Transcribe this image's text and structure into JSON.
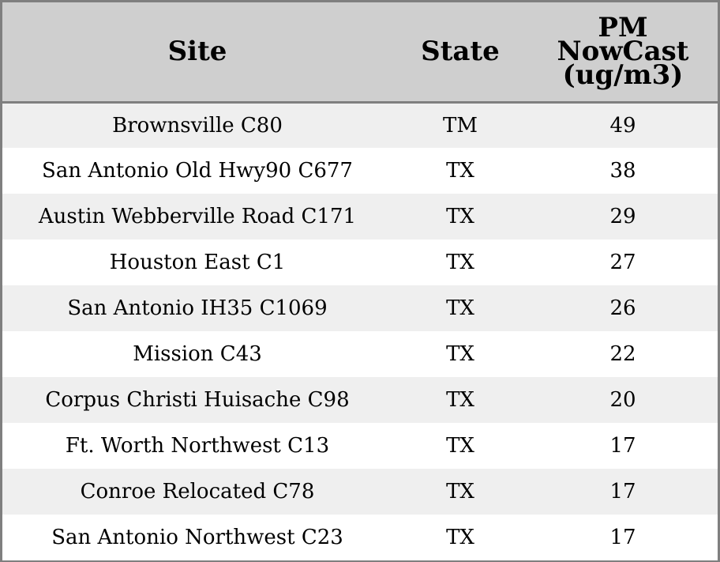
{
  "table": {
    "headers": {
      "site": "Site",
      "state": "State",
      "pm": [
        "PM",
        "NowCast",
        "(ug/m3)"
      ]
    },
    "rows": [
      {
        "site": "Brownsville C80",
        "state": "TM",
        "pm": "49"
      },
      {
        "site": "San Antonio Old Hwy90 C677",
        "state": "TX",
        "pm": "38"
      },
      {
        "site": "Austin Webberville Road C171",
        "state": "TX",
        "pm": "29"
      },
      {
        "site": "Houston East C1",
        "state": "TX",
        "pm": "27"
      },
      {
        "site": "San Antonio IH35 C1069",
        "state": "TX",
        "pm": "26"
      },
      {
        "site": "Mission C43",
        "state": "TX",
        "pm": "22"
      },
      {
        "site": "Corpus Christi Huisache C98",
        "state": "TX",
        "pm": "20"
      },
      {
        "site": "Ft. Worth Northwest C13",
        "state": "TX",
        "pm": "17"
      },
      {
        "site": "Conroe Relocated C78",
        "state": "TX",
        "pm": "17"
      },
      {
        "site": "San Antonio Northwest C23",
        "state": "TX",
        "pm": "17"
      }
    ]
  },
  "colors": {
    "header_bg": "#cfcfcf",
    "row_alt_bg": "#efefef",
    "row_bg": "#ffffff",
    "border": "#7f7f7f"
  }
}
